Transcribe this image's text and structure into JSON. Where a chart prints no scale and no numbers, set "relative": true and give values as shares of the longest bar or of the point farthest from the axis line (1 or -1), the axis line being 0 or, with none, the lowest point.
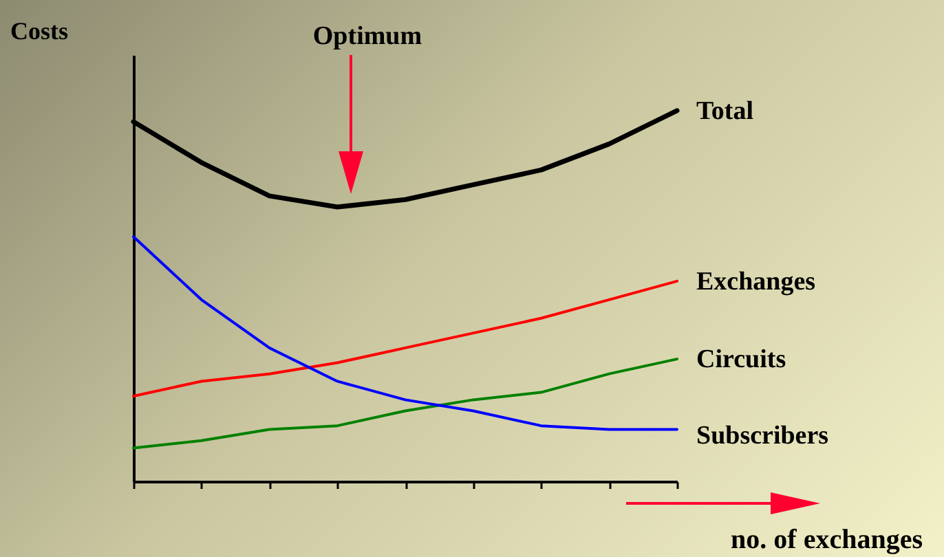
{
  "chart_data": {
    "type": "line",
    "relative": true,
    "xlabel": "no. of exchanges",
    "ylabel": "Costs",
    "annotations": [
      "Optimum"
    ],
    "categories": [
      null,
      null,
      null,
      null,
      null,
      null,
      null,
      null,
      null
    ],
    "series": [
      {
        "name": "Total",
        "color": "#000000",
        "values": [
          0.97,
          0.86,
          0.77,
          0.74,
          0.76,
          0.8,
          0.84,
          0.91,
          1.0
        ]
      },
      {
        "name": "Exchanges",
        "color": "#ff0000",
        "values": [
          0.23,
          0.27,
          0.29,
          0.32,
          0.36,
          0.4,
          0.44,
          0.49,
          0.54
        ]
      },
      {
        "name": "Circuits",
        "color": "#008000",
        "values": [
          0.09,
          0.11,
          0.14,
          0.15,
          0.19,
          0.22,
          0.24,
          0.29,
          0.33
        ]
      },
      {
        "name": "Subscribers",
        "color": "#0000ff",
        "values": [
          0.66,
          0.49,
          0.36,
          0.27,
          0.22,
          0.19,
          0.15,
          0.14,
          0.14
        ]
      }
    ]
  }
}
